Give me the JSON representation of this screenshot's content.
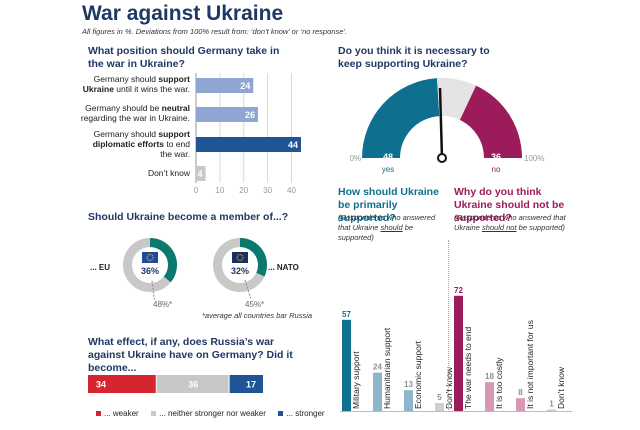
{
  "title": "War against Ukraine",
  "subtitle": "All figures in %. Deviations from 100% result from: ‘don’t know’ or ‘no response’.",
  "colors": {
    "navy": "#1f3864",
    "blue_light": "#8ea6d1",
    "blue_dark": "#1f5597",
    "grey": "#c8c8c8",
    "teal": "#0e6f8f",
    "teal_green": "#0b7a6e",
    "magenta": "#9c1c5b",
    "red": "#d7252f"
  },
  "q1": {
    "title": "What position should Germany take in the war in Ukraine?",
    "categories": [
      "Germany should support Ukraine until it wins the war.",
      "Germany should be neutral regarding the war in Ukraine.",
      "Germany should support diplomatic efforts to end the war.",
      "Don’t know"
    ],
    "cat_lines": [
      [
        "Germany should ",
        "support",
        "",
        "Ukraine",
        " until it wins the war."
      ],
      [
        "Germany should be ",
        "neutral",
        "",
        "",
        "regarding the war in Ukraine."
      ],
      [
        "Germany should ",
        "support",
        "",
        "diplomatic efforts",
        " to end the war."
      ],
      [
        "Don’t know",
        "",
        "",
        "",
        ""
      ]
    ],
    "value_labels": [
      "24",
      "26",
      "44",
      "4"
    ],
    "ticks": [
      "0",
      "10",
      "20",
      "30",
      "40"
    ]
  },
  "q2": {
    "title": "Do you think it is necessary to keep supporting Ukraine?",
    "yes_label": "yes",
    "no_label": "no",
    "yes_value": "48",
    "no_value": "36",
    "min_label": "0%",
    "max_label": "100%"
  },
  "q3": {
    "title": "Should Ukraine become a member of...?",
    "eu_label": "... EU",
    "nato_label": "... NATO",
    "eu_value": "36%",
    "nato_value": "32%",
    "eu_avg": "48%*",
    "nato_avg": "45%*",
    "footnote": "*average all countries bar Russia"
  },
  "q4": {
    "title": "What effect, if any, does Russia’s war against Ukraine have on Germany? Did it become...",
    "value_labels": [
      "34",
      "36",
      "17"
    ],
    "legend": [
      "... weaker",
      "... neither stronger nor weaker",
      "... stronger"
    ]
  },
  "q5": {
    "title": "How should Ukraine be primarily supported?",
    "note_pre": "(Respondents who answered that Ukraine ",
    "note_em": "should",
    "note_post": " be supported)",
    "categories": [
      "Military support",
      "Humanitarian support",
      "Economic support",
      "Don’t know"
    ],
    "value_labels": [
      "57",
      "24",
      "13",
      "5"
    ]
  },
  "q6": {
    "title": "Why do you think Ukraine should not be supported?",
    "note_pre": "(Respondents who answered that Ukraine ",
    "note_em": "should not",
    "note_post": " be supported)",
    "categories": [
      "The war needs to end",
      "It is too costly",
      "It is not important for us",
      "Don’t know"
    ],
    "value_labels": [
      "72",
      "18",
      "8",
      "1"
    ]
  },
  "chart_data": [
    {
      "type": "bar",
      "orientation": "horizontal",
      "title": "What position should Germany take in the war in Ukraine?",
      "categories": [
        "Germany should support Ukraine until it wins the war.",
        "Germany should be neutral regarding the war in Ukraine.",
        "Germany should support diplomatic efforts to end the war.",
        "Don’t know"
      ],
      "values": [
        24,
        26,
        44,
        4
      ],
      "xlim": [
        0,
        45
      ],
      "grid": true
    },
    {
      "type": "pie",
      "style": "half-donut gauge",
      "title": "Do you think it is necessary to keep supporting Ukraine?",
      "categories": [
        "yes",
        "no"
      ],
      "values": [
        48,
        36
      ]
    },
    {
      "type": "pie",
      "style": "donut",
      "title": "Should Ukraine become a member of... EU",
      "categories": [
        "... EU"
      ],
      "values": [
        36
      ],
      "reference": 48
    },
    {
      "type": "pie",
      "style": "donut",
      "title": "Should Ukraine become a member of... NATO",
      "categories": [
        "... NATO"
      ],
      "values": [
        32
      ],
      "reference": 45
    },
    {
      "type": "bar",
      "orientation": "horizontal stacked",
      "title": "What effect, if any, does Russia’s war against Ukraine have on Germany? Did it become...",
      "categories": [
        "... weaker",
        "... neither stronger nor weaker",
        "... stronger"
      ],
      "values": [
        34,
        36,
        17
      ]
    },
    {
      "type": "bar",
      "title": "How should Ukraine be primarily supported?",
      "categories": [
        "Military support",
        "Humanitarian support",
        "Economic support",
        "Don’t know"
      ],
      "values": [
        57,
        24,
        13,
        5
      ]
    },
    {
      "type": "bar",
      "title": "Why do you think Ukraine should not be supported?",
      "categories": [
        "The war needs to end",
        "It is too costly",
        "It is not important for us",
        "Don’t know"
      ],
      "values": [
        72,
        18,
        8,
        1
      ]
    }
  ]
}
